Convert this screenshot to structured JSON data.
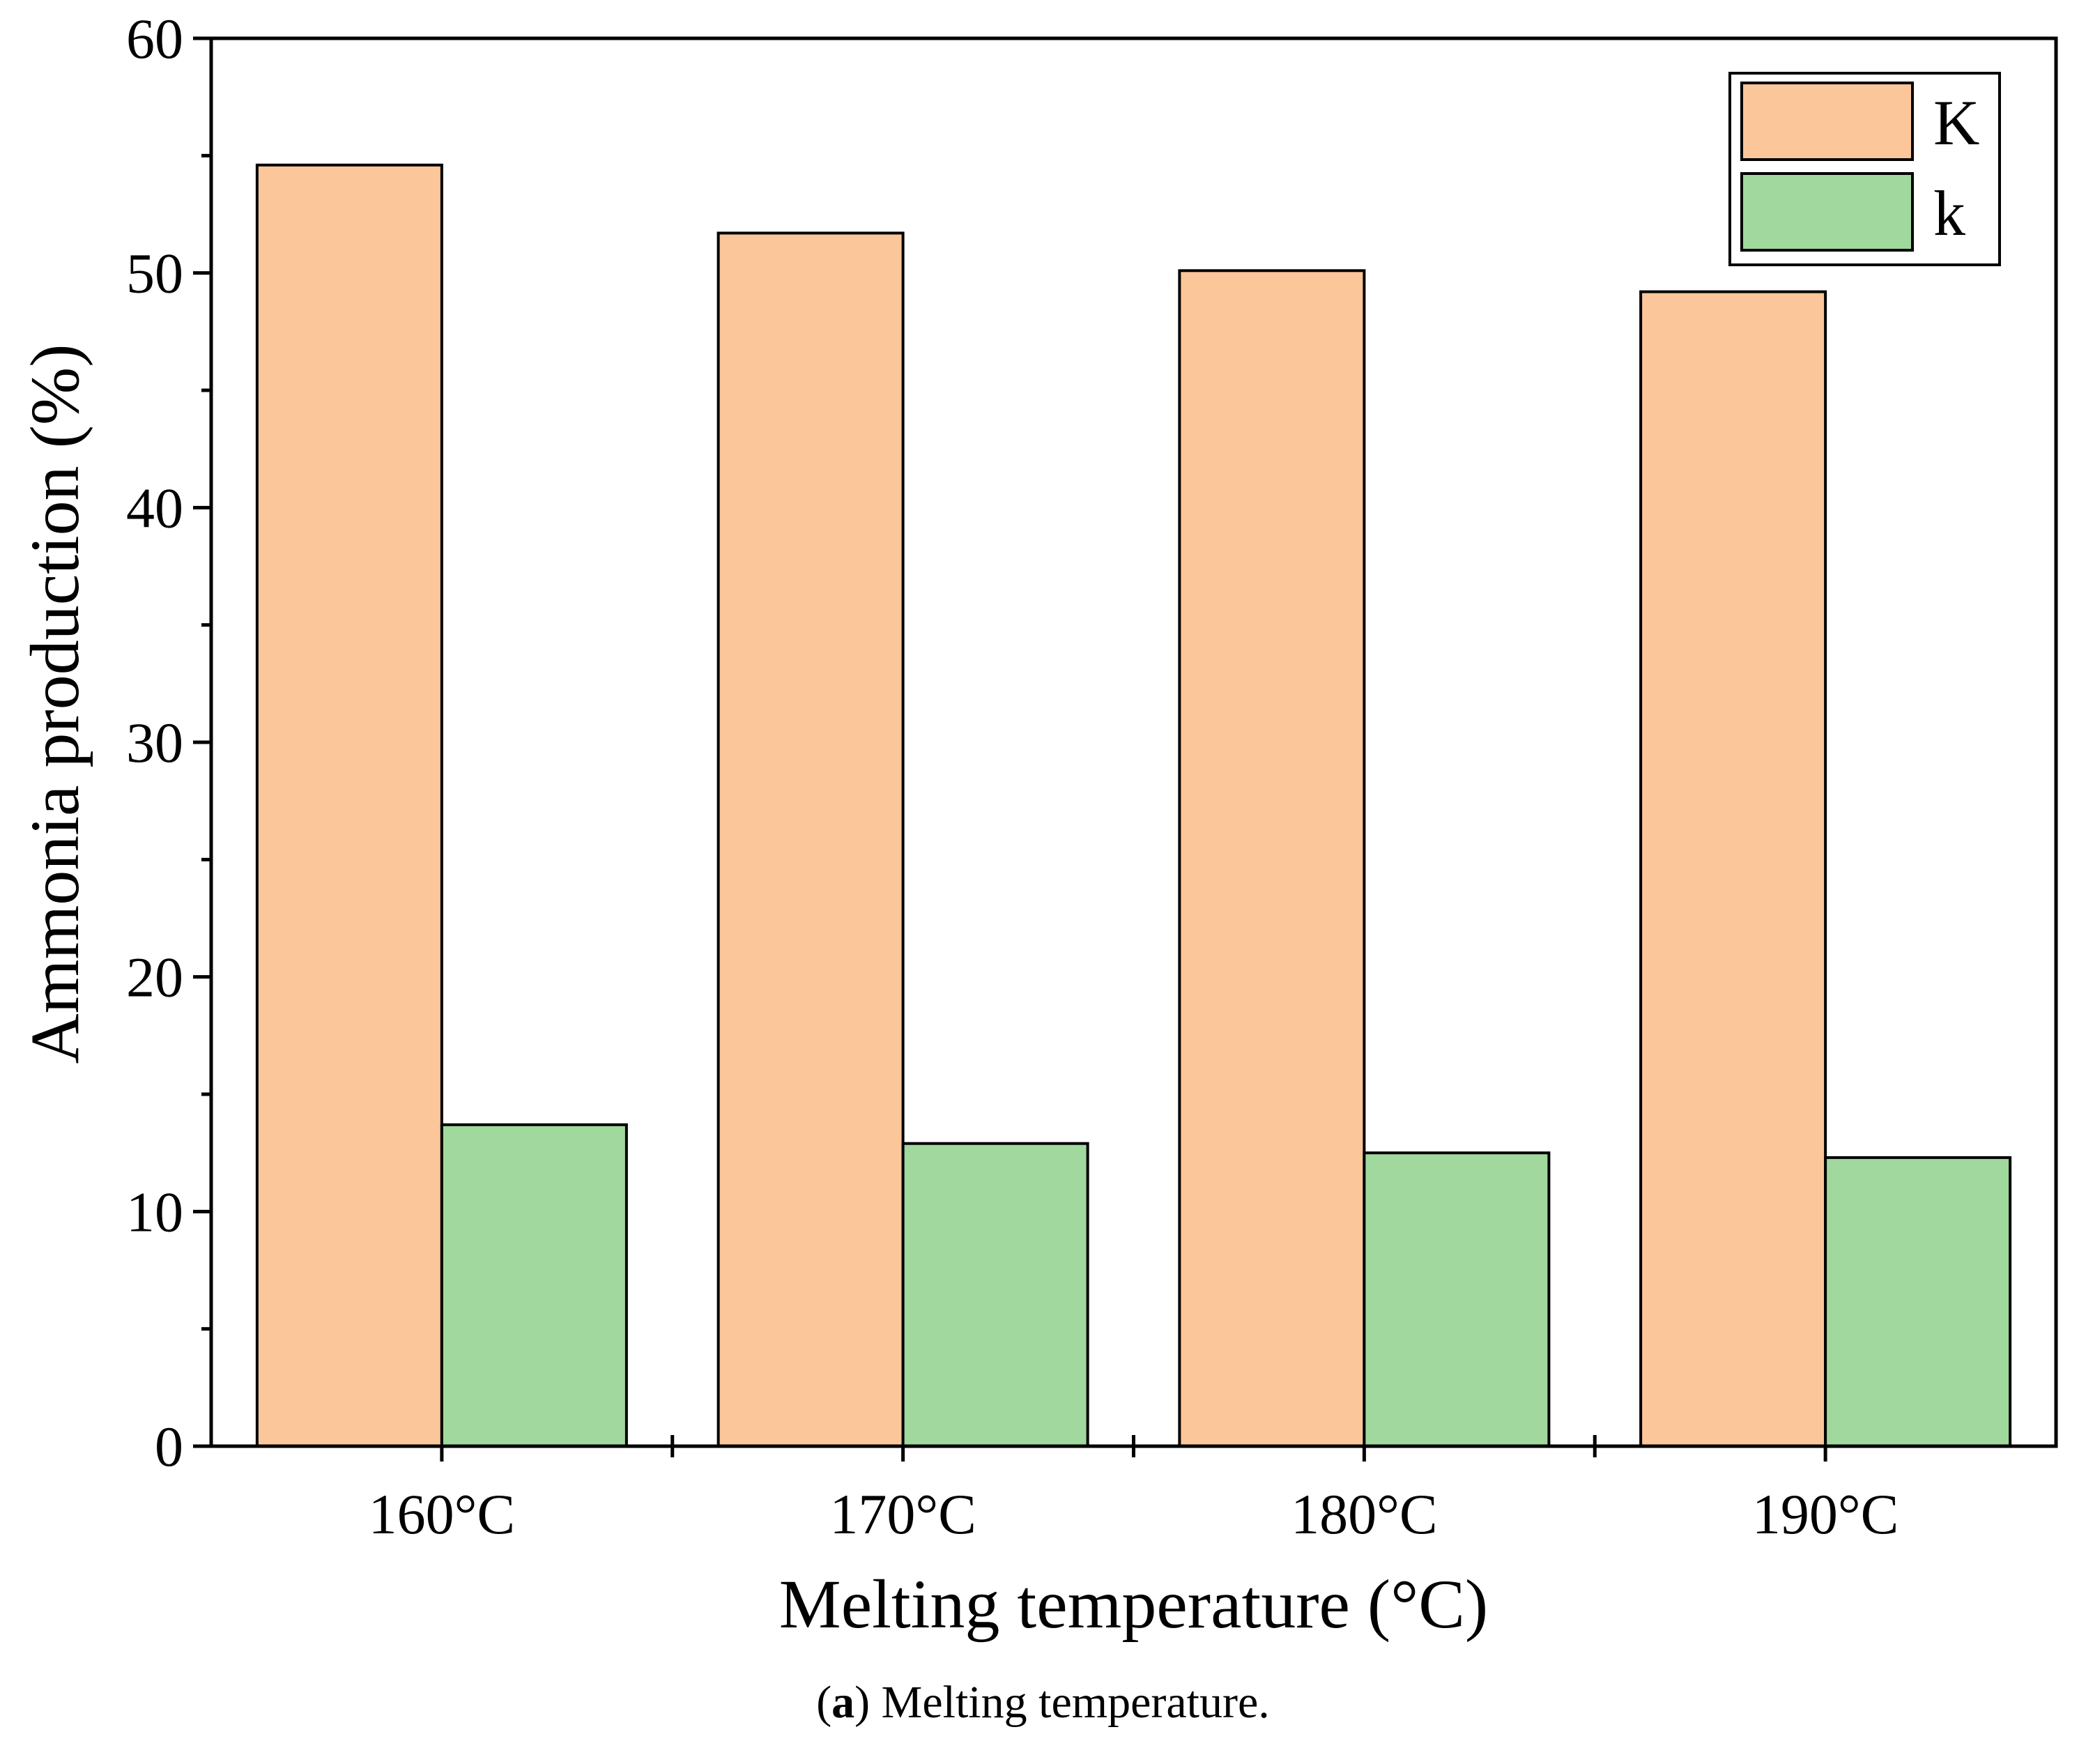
{
  "chart_data": {
    "type": "bar",
    "title": "",
    "xlabel": "Melting temperature (°C)",
    "ylabel": "Ammonia production (%)",
    "ylim": [
      0,
      60
    ],
    "yticks": [
      0,
      10,
      20,
      30,
      40,
      50,
      60
    ],
    "categories": [
      "160°C",
      "170°C",
      "180°C",
      "190°C"
    ],
    "series": [
      {
        "name": "K",
        "color": "#fbc699",
        "values": [
          54.6,
          51.7,
          50.1,
          49.2
        ]
      },
      {
        "name": "k",
        "color": "#a0d89e",
        "values": [
          13.7,
          12.9,
          12.5,
          12.3
        ]
      }
    ],
    "legend_position": "top-right",
    "grid": false
  },
  "caption": {
    "label": "a",
    "text": "Melting temperature."
  }
}
